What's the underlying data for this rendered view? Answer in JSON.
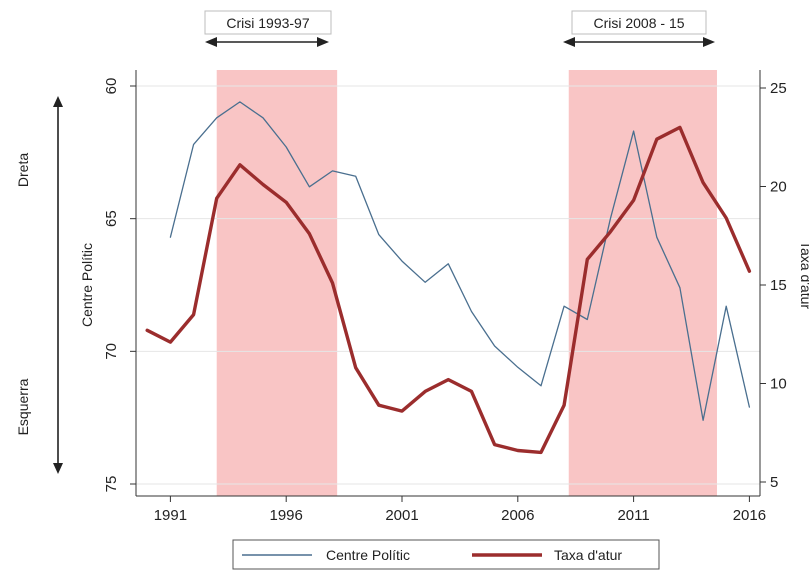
{
  "chart_data": {
    "type": "line",
    "title": "",
    "x": [
      1990,
      1991,
      1992,
      1993,
      1994,
      1995,
      1996,
      1997,
      1998,
      1999,
      2000,
      2001,
      2002,
      2003,
      2004,
      2005,
      2006,
      2007,
      2008,
      2009,
      2010,
      2011,
      2012,
      2013,
      2014,
      2015,
      2016
    ],
    "xlim": [
      1989.5,
      2016.5
    ],
    "xticks": [
      1991,
      1996,
      2001,
      2006,
      2011,
      2016
    ],
    "xtick_labels": [
      "1991",
      "1996",
      "2001",
      "2006",
      "2011",
      "2016"
    ],
    "y_left": {
      "label": "Centre Polític",
      "lim": [
        60,
        75
      ],
      "reversed": true,
      "ticks": [
        60,
        65,
        70,
        75
      ],
      "tick_labels": [
        "60",
        "65",
        "70",
        "75"
      ]
    },
    "y_right": {
      "label": "Taxa d'atur",
      "lim": [
        5,
        25
      ],
      "ticks": [
        5,
        10,
        15,
        20,
        25
      ],
      "tick_labels": [
        "5",
        "10",
        "15",
        "20",
        "25"
      ]
    },
    "series": [
      {
        "name": "Centre Polític",
        "axis": "left",
        "color": "#4a6f8f",
        "values": [
          null,
          65.7,
          62.2,
          61.2,
          60.6,
          61.2,
          62.3,
          63.8,
          63.2,
          63.4,
          65.6,
          66.6,
          67.4,
          66.7,
          68.5,
          69.8,
          70.6,
          71.3,
          68.3,
          68.8,
          65.0,
          61.7,
          65.7,
          67.6,
          72.6,
          68.3,
          72.1
        ]
      },
      {
        "name": "Taxa d'atur",
        "axis": "right",
        "color": "#9b2d2d",
        "values": [
          12.7,
          12.1,
          13.5,
          19.4,
          21.1,
          20.1,
          19.2,
          17.6,
          15.1,
          10.8,
          8.9,
          8.6,
          9.6,
          10.2,
          9.6,
          6.9,
          6.6,
          6.5,
          8.9,
          16.3,
          17.7,
          19.3,
          22.4,
          23.0,
          20.2,
          18.4,
          15.7
        ]
      }
    ],
    "shaded_periods": [
      {
        "start": 1993,
        "end": 1998.2,
        "label": "Crisi 1993-97",
        "color": "#f9c5c5"
      },
      {
        "start": 2008.2,
        "end": 2014.6,
        "label": "Crisi 2008 - 15",
        "color": "#f9c5c5"
      }
    ],
    "side_labels": {
      "top": "Dreta",
      "bottom": "Esquerra"
    },
    "grid": true,
    "legend": {
      "position": "bottom",
      "entries": [
        "Centre Polític",
        "Taxa d'atur"
      ]
    }
  }
}
